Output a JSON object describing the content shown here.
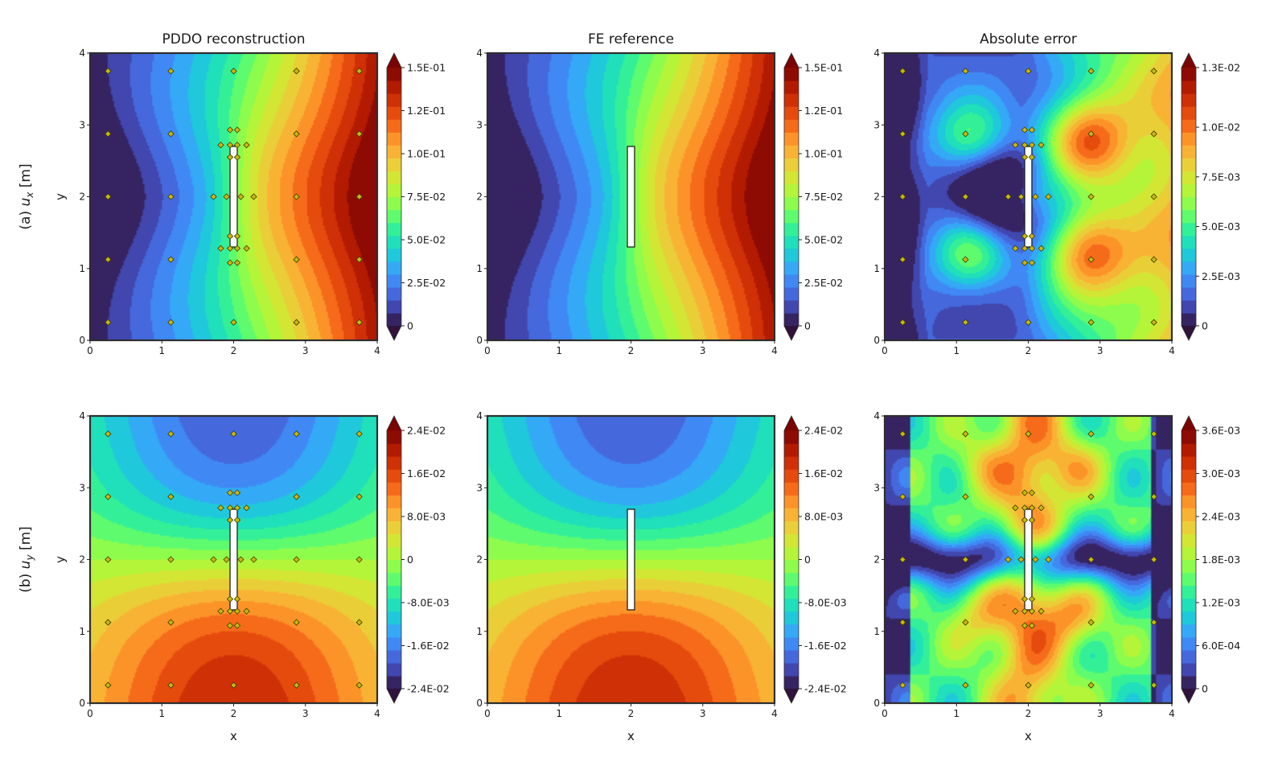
{
  "figure": {
    "column_titles": [
      "PDDO reconstruction",
      "FE reference",
      "Absolute error"
    ],
    "rows": [
      {
        "tag": "(a)",
        "quantity": "u",
        "subscript": "x",
        "unit": "[m]",
        "ylabel": "y"
      },
      {
        "tag": "(b)",
        "quantity": "u",
        "subscript": "y",
        "unit": "[m]",
        "ylabel": "y"
      }
    ],
    "xlabel": "x"
  },
  "chart_data": [
    {
      "type": "heatmap",
      "row": 0,
      "col": 0,
      "field": "ux",
      "kind": "field",
      "show_sensors": true,
      "title": "PDDO reconstruction",
      "ylabel": "y",
      "xlabel": "",
      "xlim": [
        0,
        4
      ],
      "ylim": [
        0,
        4
      ],
      "x_ticks": [
        "0",
        "1",
        "2",
        "3",
        "4"
      ],
      "y_ticks": [
        "0",
        "1",
        "2",
        "3",
        "4"
      ],
      "colorbar": {
        "min": 0,
        "max": 0.15,
        "ticks": [
          0,
          0.025,
          0.05,
          0.075,
          0.1,
          0.125,
          0.15
        ],
        "tick_labels": [
          "0",
          "2.5E-02",
          "5.0E-02",
          "7.5E-02",
          "1.0E-01",
          "1.2E-01",
          "1.5E-01"
        ]
      }
    },
    {
      "type": "heatmap",
      "row": 0,
      "col": 1,
      "field": "ux",
      "kind": "field",
      "show_sensors": false,
      "title": "FE reference",
      "ylabel": "",
      "xlabel": "",
      "xlim": [
        0,
        4
      ],
      "ylim": [
        0,
        4
      ],
      "x_ticks": [
        "0",
        "1",
        "2",
        "3",
        "4"
      ],
      "y_ticks": [
        "0",
        "1",
        "2",
        "3",
        "4"
      ],
      "colorbar": {
        "min": 0,
        "max": 0.15,
        "ticks": [
          0,
          0.025,
          0.05,
          0.075,
          0.1,
          0.125,
          0.15
        ],
        "tick_labels": [
          "0",
          "2.5E-02",
          "5.0E-02",
          "7.5E-02",
          "1.0E-01",
          "1.2E-01",
          "1.5E-01"
        ]
      }
    },
    {
      "type": "heatmap",
      "row": 0,
      "col": 2,
      "field": "ux",
      "kind": "error",
      "show_sensors": true,
      "title": "Absolute error",
      "ylabel": "",
      "xlabel": "",
      "xlim": [
        0,
        4
      ],
      "ylim": [
        0,
        4
      ],
      "x_ticks": [
        "0",
        "1",
        "2",
        "3",
        "4"
      ],
      "y_ticks": [
        "0",
        "1",
        "2",
        "3",
        "4"
      ],
      "colorbar": {
        "min": 0,
        "max": 0.013,
        "ticks": [
          0,
          0.0025,
          0.005,
          0.0075,
          0.01,
          0.013
        ],
        "tick_labels": [
          "0",
          "2.5E-03",
          "5.0E-03",
          "7.5E-03",
          "1.0E-02",
          "1.3E-02"
        ]
      }
    },
    {
      "type": "heatmap",
      "row": 1,
      "col": 0,
      "field": "uy",
      "kind": "field",
      "show_sensors": true,
      "title": "",
      "ylabel": "y",
      "xlabel": "x",
      "xlim": [
        0,
        4
      ],
      "ylim": [
        0,
        4
      ],
      "x_ticks": [
        "0",
        "1",
        "2",
        "3",
        "4"
      ],
      "y_ticks": [
        "0",
        "1",
        "2",
        "3",
        "4"
      ],
      "colorbar": {
        "min": -0.024,
        "max": 0.024,
        "ticks": [
          -0.024,
          -0.016,
          -0.008,
          0,
          0.008,
          0.016,
          0.024
        ],
        "tick_labels": [
          "-2.4E-02",
          "-1.6E-02",
          "-8.0E-03",
          "0",
          "8.0E-03",
          "1.6E-02",
          "2.4E-02"
        ]
      }
    },
    {
      "type": "heatmap",
      "row": 1,
      "col": 1,
      "field": "uy",
      "kind": "field",
      "show_sensors": false,
      "title": "",
      "ylabel": "",
      "xlabel": "x",
      "xlim": [
        0,
        4
      ],
      "ylim": [
        0,
        4
      ],
      "x_ticks": [
        "0",
        "1",
        "2",
        "3",
        "4"
      ],
      "y_ticks": [
        "0",
        "1",
        "2",
        "3",
        "4"
      ],
      "colorbar": {
        "min": -0.024,
        "max": 0.024,
        "ticks": [
          -0.024,
          -0.016,
          -0.008,
          0,
          0.008,
          0.016,
          0.024
        ],
        "tick_labels": [
          "-2.4E-02",
          "-1.6E-02",
          "-8.0E-03",
          "0",
          "8.0E-03",
          "1.6E-02",
          "2.4E-02"
        ]
      }
    },
    {
      "type": "heatmap",
      "row": 1,
      "col": 2,
      "field": "uy",
      "kind": "error",
      "show_sensors": true,
      "title": "",
      "ylabel": "",
      "xlabel": "x",
      "xlim": [
        0,
        4
      ],
      "ylim": [
        0,
        4
      ],
      "x_ticks": [
        "0",
        "1",
        "2",
        "3",
        "4"
      ],
      "y_ticks": [
        "0",
        "1",
        "2",
        "3",
        "4"
      ],
      "colorbar": {
        "min": 0,
        "max": 0.0036,
        "ticks": [
          0,
          0.0006,
          0.0012,
          0.0018,
          0.0024,
          0.003,
          0.0036
        ],
        "tick_labels": [
          "0",
          "6.0E-04",
          "1.2E-03",
          "1.8E-03",
          "2.4E-03",
          "3.0E-03",
          "3.6E-03"
        ]
      }
    }
  ],
  "crack": {
    "x": 2.0,
    "y_from": 1.3,
    "y_to": 2.7,
    "width": 0.1
  },
  "sensors": [
    [
      0.25,
      3.75
    ],
    [
      1.125,
      3.75
    ],
    [
      2.0,
      3.75
    ],
    [
      2.875,
      3.75
    ],
    [
      3.75,
      3.75
    ],
    [
      0.25,
      2.875
    ],
    [
      1.125,
      2.875
    ],
    [
      2.875,
      2.875
    ],
    [
      3.75,
      2.875
    ],
    [
      0.25,
      2.0
    ],
    [
      1.125,
      2.0
    ],
    [
      2.875,
      2.0
    ],
    [
      3.75,
      2.0
    ],
    [
      0.25,
      1.125
    ],
    [
      1.125,
      1.125
    ],
    [
      2.875,
      1.125
    ],
    [
      3.75,
      1.125
    ],
    [
      0.25,
      0.25
    ],
    [
      1.125,
      0.25
    ],
    [
      2.0,
      0.25
    ],
    [
      2.875,
      0.25
    ],
    [
      3.75,
      0.25
    ],
    [
      1.95,
      2.93
    ],
    [
      2.05,
      2.93
    ],
    [
      1.95,
      2.72
    ],
    [
      2.05,
      2.72
    ],
    [
      1.82,
      2.72
    ],
    [
      2.18,
      2.72
    ],
    [
      1.95,
      2.55
    ],
    [
      2.05,
      2.55
    ],
    [
      1.72,
      2.0
    ],
    [
      2.28,
      2.0
    ],
    [
      1.9,
      2.0
    ],
    [
      2.1,
      2.0
    ],
    [
      1.95,
      1.45
    ],
    [
      2.05,
      1.45
    ],
    [
      1.95,
      1.28
    ],
    [
      2.05,
      1.28
    ],
    [
      1.82,
      1.28
    ],
    [
      2.18,
      1.28
    ],
    [
      1.95,
      1.08
    ],
    [
      2.05,
      1.08
    ]
  ],
  "colormap": [
    "#30123b",
    "#4145ab",
    "#4675ed",
    "#39a2fc",
    "#1bcfd4",
    "#24eca6",
    "#61fc6c",
    "#a4fc3b",
    "#d1e834",
    "#f3c63a",
    "#fe9b2d",
    "#f36315",
    "#d93806",
    "#b11901",
    "#7a0402"
  ],
  "colors": {
    "sensor_fill": "#c9b814",
    "sensor_edge": "#3b3b00",
    "frame": "#2e2e2e",
    "crack_fill": "#ffffff"
  }
}
